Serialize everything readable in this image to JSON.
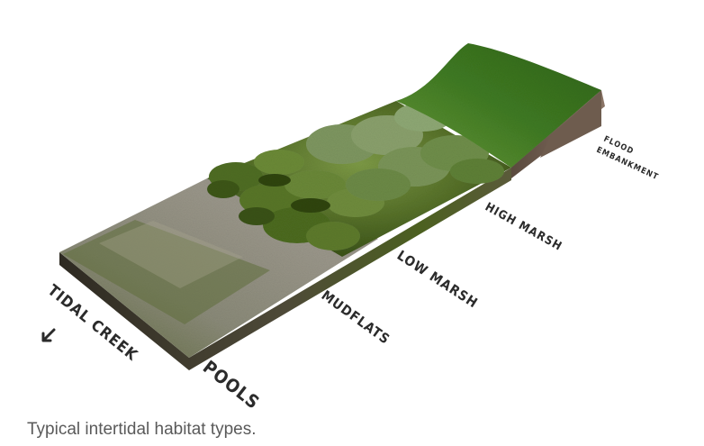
{
  "labels": {
    "tidal_creek": "TIDAL CREEK",
    "pools": "POOLS",
    "mudflats": "MUDFLATS",
    "low_marsh": "LOW MARSH",
    "high_marsh": "HIGH MARSH",
    "flood_line1": "FLOOD",
    "flood_line2": "EMBANKMENT"
  },
  "caption": "Typical intertidal habitat types.",
  "colors": {
    "mud": "#8d8b7f",
    "pool_water": "#6f7a4e",
    "marsh_shrub": "#4d6b22",
    "grass": "#3f7a22",
    "soil_side": "#6b5a4c",
    "label_text": "#2b2b2b"
  }
}
